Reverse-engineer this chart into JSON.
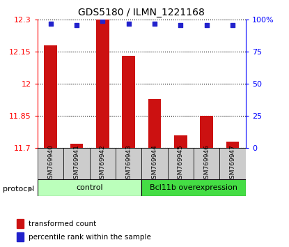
{
  "title": "GDS5180 / ILMN_1221168",
  "samples": [
    "GSM769940",
    "GSM769941",
    "GSM769942",
    "GSM769943",
    "GSM769944",
    "GSM769945",
    "GSM769946",
    "GSM769947"
  ],
  "bar_values": [
    12.18,
    11.72,
    12.3,
    12.13,
    11.93,
    11.76,
    11.85,
    11.73
  ],
  "percentile_values": [
    97,
    96,
    99,
    97,
    97,
    96,
    96,
    96
  ],
  "ylim": [
    11.7,
    12.3
  ],
  "yticks": [
    11.7,
    11.85,
    12.0,
    12.15,
    12.3
  ],
  "ytick_labels": [
    "11.7",
    "11.85",
    "12",
    "12.15",
    "12.3"
  ],
  "right_yticks": [
    0,
    25,
    50,
    75,
    100
  ],
  "right_ytick_labels": [
    "0",
    "25",
    "50",
    "75",
    "100%"
  ],
  "bar_color": "#cc1111",
  "dot_color": "#2222cc",
  "bar_width": 0.5,
  "control_label": "control",
  "treatment_label": "Bcl11b overexpression",
  "protocol_label": "protocol",
  "control_count": 4,
  "control_color": "#bbffbb",
  "treatment_color": "#44dd44",
  "sample_box_color": "#cccccc",
  "legend_bar_label": "transformed count",
  "legend_dot_label": "percentile rank within the sample"
}
